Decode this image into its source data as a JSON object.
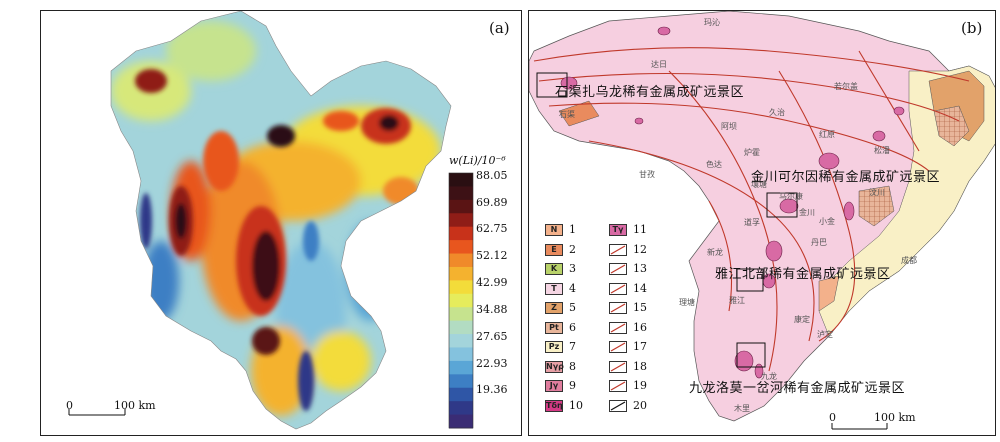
{
  "panel_a": {
    "label": "(a)",
    "colorbar": {
      "title": "w(Li)/10⁻⁶",
      "ticks": [
        "88.05",
        "69.89",
        "62.75",
        "52.12",
        "42.99",
        "34.88",
        "27.65",
        "22.93",
        "19.36"
      ],
      "colors": [
        "#2a0f12",
        "#3d1115",
        "#5a1414",
        "#8f1d17",
        "#c8321a",
        "#e8561e",
        "#f08a2a",
        "#f4b22f",
        "#f3dc3a",
        "#e6ec5c",
        "#c6e38e",
        "#b2dcc2",
        "#a3d4db",
        "#84c2de",
        "#5aa6d6",
        "#3d7fc4",
        "#2f56a6",
        "#2f3988",
        "#3a2c75"
      ]
    },
    "scale": {
      "zero": "0",
      "end": "100 km"
    }
  },
  "panel_b": {
    "label": "(b)",
    "regions": [
      "石渠扎乌龙稀有金属成矿远景区",
      "金川可尔因稀有金属成矿远景区",
      "雅江北部稀有金属成矿远景区",
      "九龙洛莫一岔河稀有金属成矿远景区"
    ],
    "legend": [
      {
        "code": "N",
        "num": "1",
        "color": "#f3b18b"
      },
      {
        "code": "E",
        "num": "2",
        "color": "#e98b5e"
      },
      {
        "code": "K",
        "num": "3",
        "color": "#b9d26a"
      },
      {
        "code": "T",
        "num": "4",
        "color": "#f5d5e3"
      },
      {
        "code": "Z",
        "num": "5",
        "color": "#e2a26a"
      },
      {
        "code": "Pt",
        "num": "6",
        "color": "#e8b59a"
      },
      {
        "code": "Pz",
        "num": "7",
        "color": "#f9f0c6"
      },
      {
        "code": "Nγρ",
        "num": "8",
        "color": "#e7a0a6"
      },
      {
        "code": "Jγ",
        "num": "9",
        "color": "#e07d9e"
      },
      {
        "code": "Tδη",
        "num": "10",
        "color": "#d63a86"
      },
      {
        "code": "Tγ",
        "num": "11",
        "color": "#d86aa4"
      },
      {
        "code": "",
        "num": "12",
        "color": "#ffffff"
      },
      {
        "code": "",
        "num": "13",
        "color": "#ffffff"
      },
      {
        "code": "",
        "num": "14",
        "color": "#ffffff"
      },
      {
        "code": "",
        "num": "15",
        "color": "#ffffff"
      },
      {
        "code": "",
        "num": "16",
        "color": "#ffffff"
      },
      {
        "code": "",
        "num": "17",
        "color": "#ffffff"
      },
      {
        "code": "",
        "num": "18",
        "color": "#ffffff"
      },
      {
        "code": "",
        "num": "19",
        "color": "#ffffff"
      },
      {
        "code": "",
        "num": "20",
        "color": "#ffffff"
      }
    ],
    "places": [
      "玛沁",
      "达日",
      "久治",
      "若尔盖",
      "石渠",
      "甘孜",
      "色达",
      "马尔康",
      "炉霍",
      "康定",
      "理塘",
      "雅江",
      "九龙",
      "木里",
      "成都",
      "泸定",
      "丹巴",
      "小金",
      "新龙",
      "道孚",
      "阿坝",
      "红原",
      "松潘",
      "壤塘",
      "金川",
      "汶川"
    ],
    "scale": {
      "zero": "0",
      "end": "100 km"
    }
  }
}
